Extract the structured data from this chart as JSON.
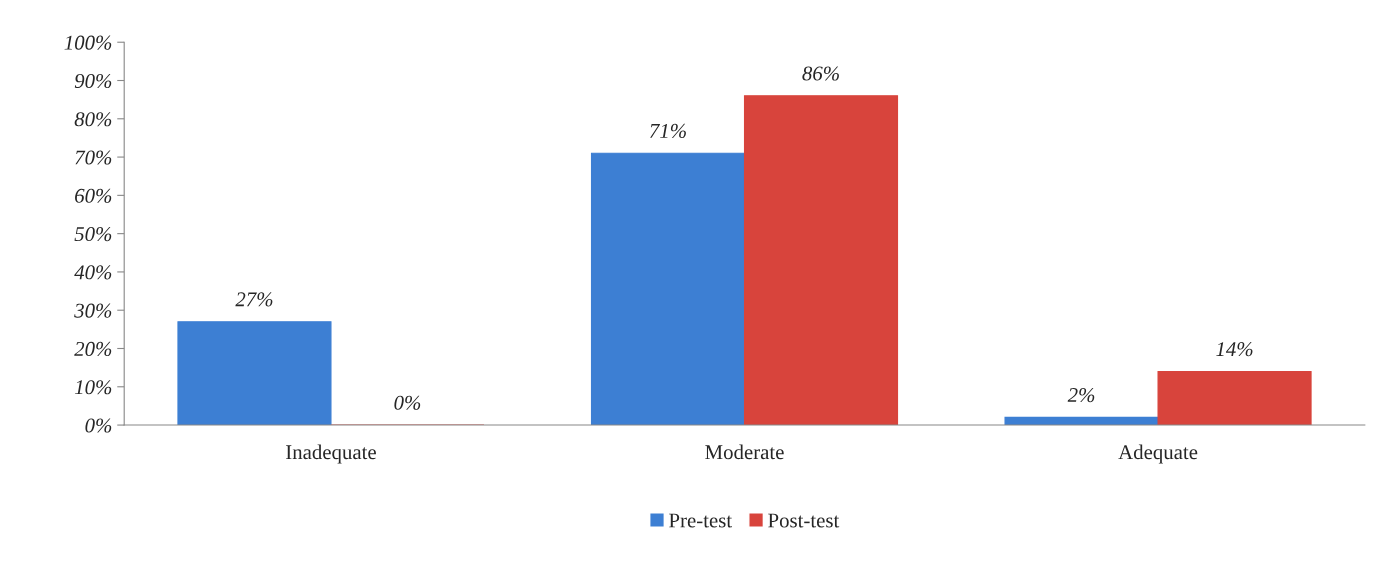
{
  "chart_data": {
    "type": "bar",
    "categories": [
      "Inadequate",
      "Moderate",
      "Adequate"
    ],
    "series": [
      {
        "name": "Pre-test",
        "color": "#3d7fd3",
        "values": [
          27,
          71,
          2
        ],
        "value_labels": [
          "27%",
          "71%",
          "2%"
        ]
      },
      {
        "name": "Post-test",
        "color": "#d8443c",
        "values": [
          0,
          86,
          14
        ],
        "value_labels": [
          "0%",
          "86%",
          "14%"
        ]
      }
    ],
    "ylim": [
      0,
      100
    ],
    "yticks": [
      {
        "value": 0,
        "label": "0%"
      },
      {
        "value": 10,
        "label": "10%"
      },
      {
        "value": 20,
        "label": "20%"
      },
      {
        "value": 30,
        "label": "30%"
      },
      {
        "value": 40,
        "label": "40%"
      },
      {
        "value": 50,
        "label": "50%"
      },
      {
        "value": 60,
        "label": "60%"
      },
      {
        "value": 70,
        "label": "70%"
      },
      {
        "value": 80,
        "label": "80%"
      },
      {
        "value": 90,
        "label": "90%"
      },
      {
        "value": 100,
        "label": "100%"
      }
    ],
    "grid": false,
    "legend": "bottom"
  }
}
